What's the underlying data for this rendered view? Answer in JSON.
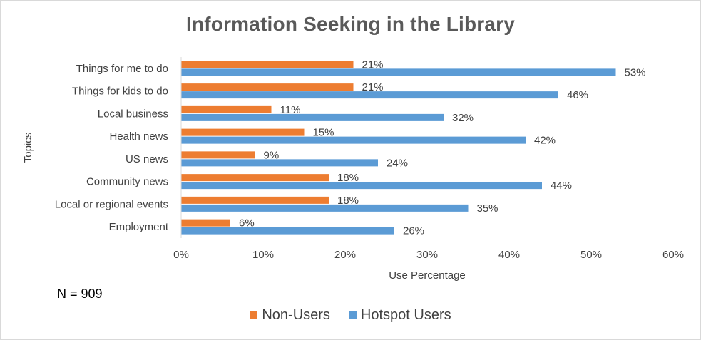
{
  "chart_data": {
    "type": "bar",
    "orientation": "horizontal",
    "title": "Information Seeking in the Library",
    "xlabel": "Use Percentage",
    "ylabel": "Topics",
    "xlim": [
      0,
      60
    ],
    "x_ticks": [
      "0%",
      "10%",
      "20%",
      "30%",
      "40%",
      "50%",
      "60%"
    ],
    "categories": [
      "Things for me to do",
      "Things for kids to do",
      "Local business",
      "Health news",
      "US news",
      "Community news",
      "Local or regional events",
      "Employment"
    ],
    "series": [
      {
        "name": "Non-Users",
        "color": "#ed7d31",
        "values": [
          21,
          21,
          11,
          15,
          9,
          18,
          18,
          6
        ]
      },
      {
        "name": "Hotspot Users",
        "color": "#5b9bd5",
        "values": [
          53,
          46,
          32,
          42,
          24,
          44,
          35,
          26
        ]
      }
    ],
    "value_suffix": "%",
    "grid": false,
    "legend_position": "bottom"
  },
  "note": "N = 909"
}
